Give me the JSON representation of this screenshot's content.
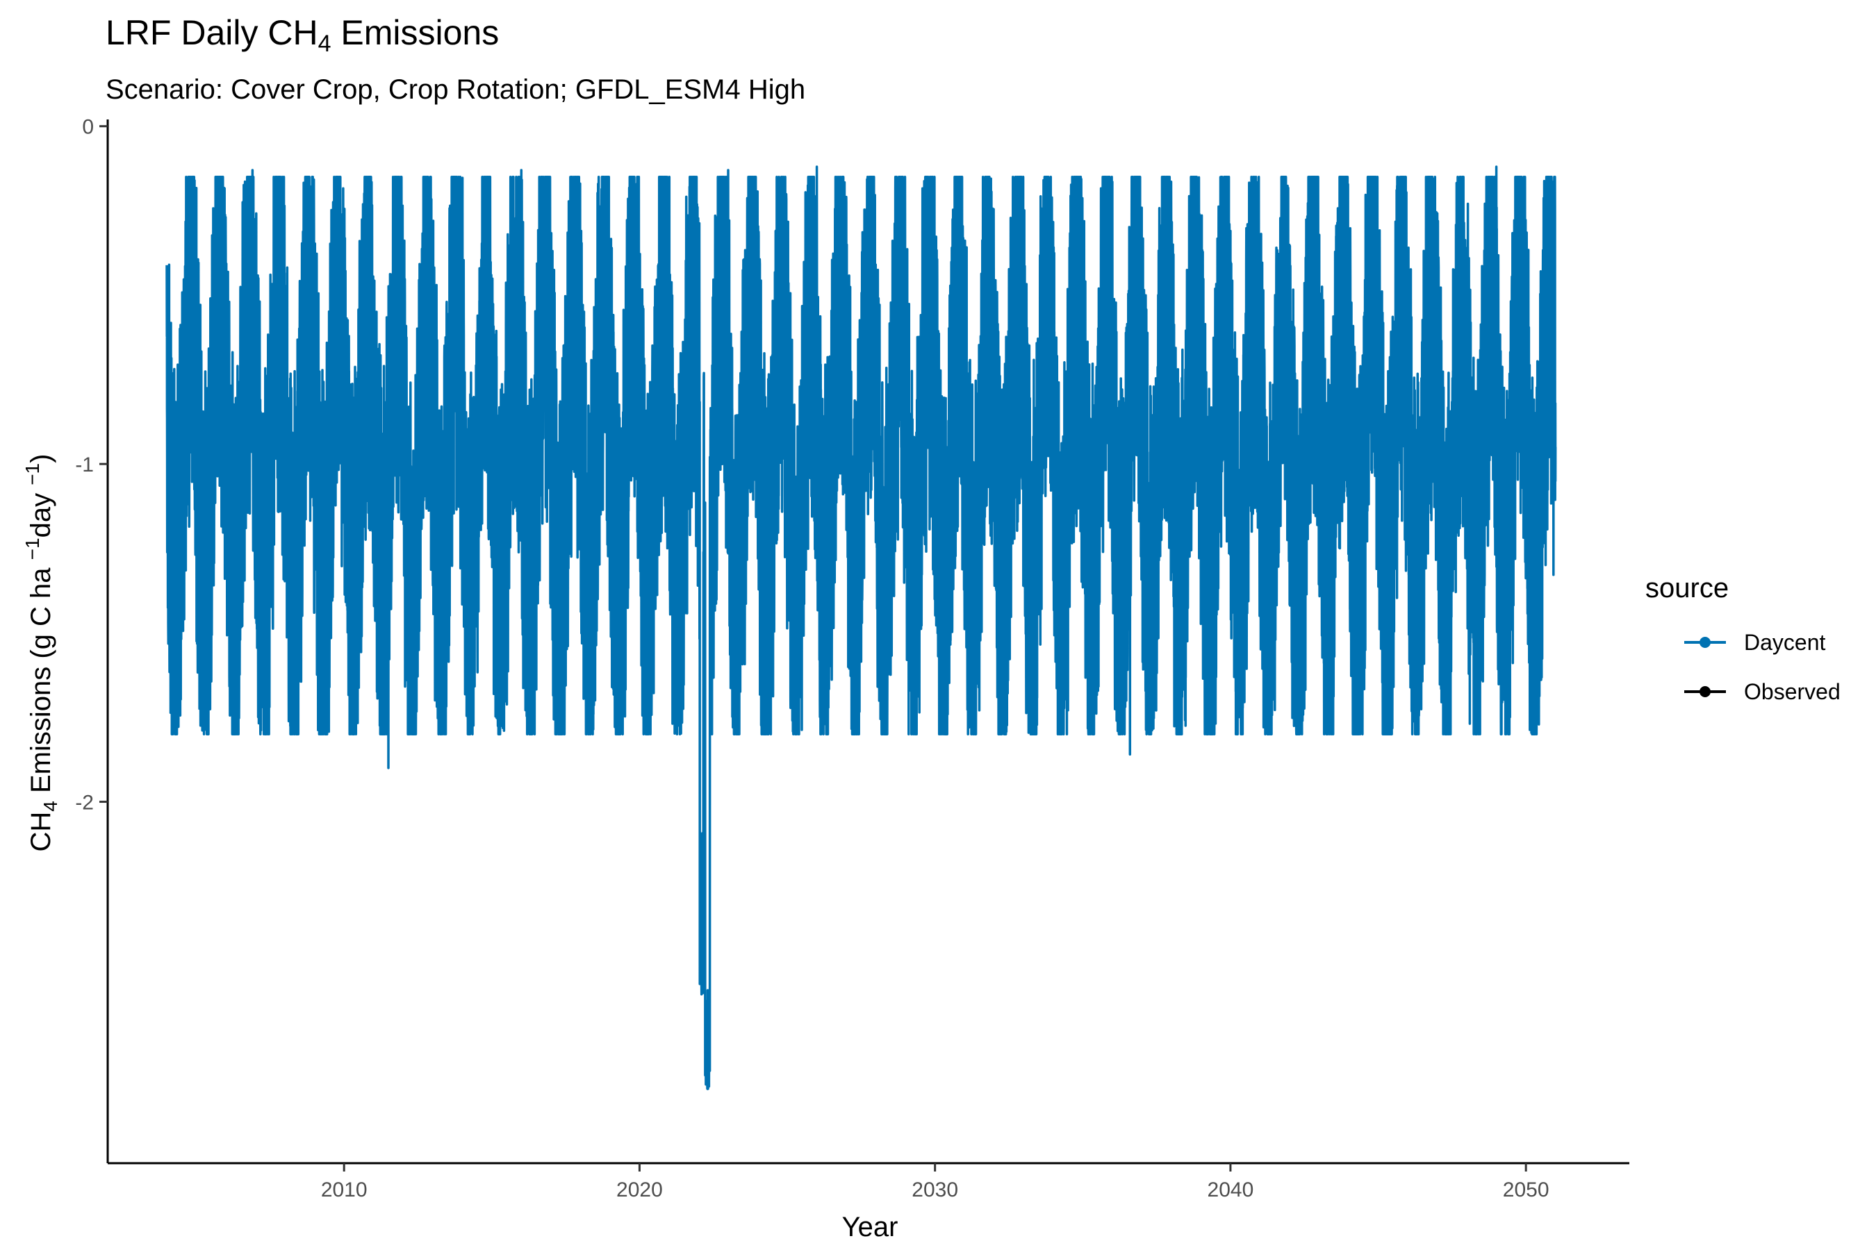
{
  "chart_data": {
    "type": "line",
    "title": "LRF Daily CH",
    "title_subscript": "4",
    "title_suffix": " Emissions",
    "subtitle": "Scenario: Cover Crop, Crop Rotation; GFDL_ESM4 High",
    "xlabel": "Year",
    "ylabel": {
      "p1": "CH",
      "p1_sub": "4",
      "p2": " Emissions (g C ha ",
      "p2_sup": "−1",
      "p3": "day ",
      "p3_sup": "−1",
      "p4": ")"
    },
    "xlim": [
      2002,
      2053.5
    ],
    "ylim": [
      -3.07,
      0.02
    ],
    "x_ticks": [
      2010,
      2020,
      2030,
      2040,
      2050
    ],
    "x_tick_labels": [
      "2010",
      "2020",
      "2030",
      "2040",
      "2050"
    ],
    "y_ticks": [
      -2,
      -1,
      0
    ],
    "y_tick_labels": [
      "-2",
      "-1",
      "0"
    ],
    "grid": false,
    "legend": {
      "title": "source",
      "position": "right",
      "entries": [
        {
          "name": "Daycent",
          "color": "#0072B2"
        },
        {
          "name": "Observed",
          "color": "#000000"
        }
      ]
    },
    "series": [
      {
        "name": "Daycent",
        "color": "#0072B2",
        "x_start": 2004.0,
        "x_end": 2051.0,
        "seasonal_pattern": "annual cycle with many rapid daily fluctuations",
        "typical_daily_range": [
          -1.8,
          -0.15
        ],
        "min": {
          "x": 2022.3,
          "y": -2.85
        },
        "notable_low_points": [
          {
            "x": 2011.5,
            "y": -1.9
          },
          {
            "x": 2022.1,
            "y": -2.57
          },
          {
            "x": 2022.3,
            "y": -2.85
          },
          {
            "x": 2036.6,
            "y": -1.86
          }
        ],
        "notable_high_points": [
          {
            "x": 2006.9,
            "y": -0.13
          },
          {
            "x": 2016.0,
            "y": -0.13
          },
          {
            "x": 2023.0,
            "y": -0.13
          },
          {
            "x": 2026.0,
            "y": -0.12
          },
          {
            "x": 2049.0,
            "y": -0.12
          }
        ]
      },
      {
        "name": "Observed",
        "color": "#000000",
        "points": []
      }
    ]
  }
}
